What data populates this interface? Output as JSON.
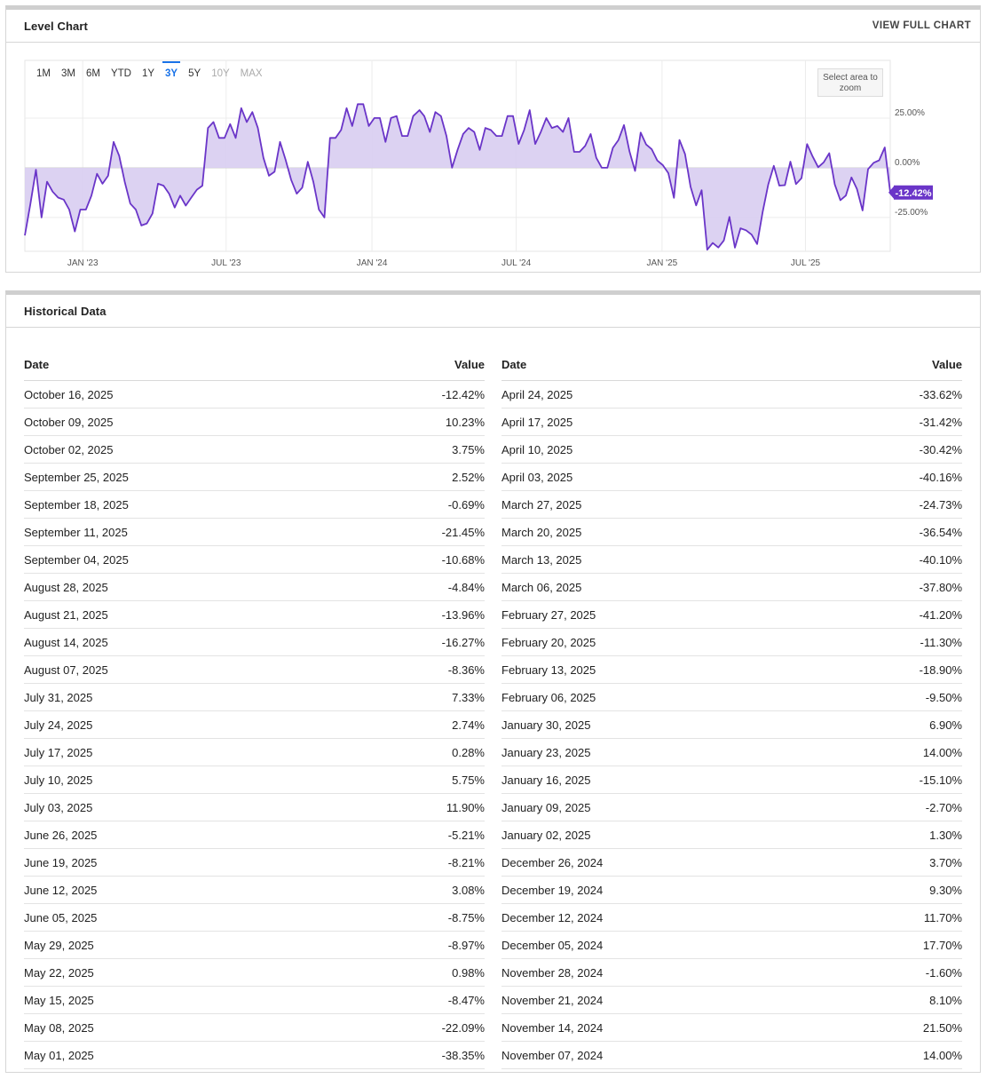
{
  "level_chart": {
    "title": "Level Chart",
    "view_full": "VIEW FULL CHART",
    "ranges": [
      {
        "label": "1M",
        "state": "normal"
      },
      {
        "label": "3M",
        "state": "normal"
      },
      {
        "label": "6M",
        "state": "normal"
      },
      {
        "label": "YTD",
        "state": "normal"
      },
      {
        "label": "1Y",
        "state": "normal"
      },
      {
        "label": "3Y",
        "state": "active"
      },
      {
        "label": "5Y",
        "state": "normal"
      },
      {
        "label": "10Y",
        "state": "disabled"
      },
      {
        "label": "MAX",
        "state": "disabled"
      }
    ],
    "zoom_hint": "Select area to zoom",
    "current_label": "-12.42%",
    "colors": {
      "line": "#6a35c8",
      "fill": "#d8cdf1",
      "current_bg": "#6a35c8",
      "active": "#1a73e8"
    }
  },
  "chart_data": {
    "type": "area",
    "x_ticks": [
      {
        "label": "JAN '23",
        "date": "2023-01-01"
      },
      {
        "label": "JUL '23",
        "date": "2023-07-01"
      },
      {
        "label": "JAN '24",
        "date": "2024-01-01"
      },
      {
        "label": "JUL '24",
        "date": "2024-07-01"
      },
      {
        "label": "JAN '25",
        "date": "2025-01-01"
      },
      {
        "label": "JUL '25",
        "date": "2025-07-01"
      }
    ],
    "y_ticks": [
      {
        "label": "25.00%",
        "value": 25
      },
      {
        "label": "0.00%",
        "value": 0
      },
      {
        "label": "-25.00%",
        "value": -25
      }
    ],
    "xlim": [
      "2022-10-20",
      "2025-10-16"
    ],
    "ylim": [
      -42,
      54
    ],
    "grid": true,
    "series": [
      {
        "points": [
          [
            "2022-10-20",
            -34
          ],
          [
            "2022-10-27",
            -18
          ],
          [
            "2022-11-03",
            -1
          ],
          [
            "2022-11-10",
            -25
          ],
          [
            "2022-11-17",
            -7
          ],
          [
            "2022-11-24",
            -12
          ],
          [
            "2022-12-01",
            -15
          ],
          [
            "2022-12-08",
            -16
          ],
          [
            "2022-12-15",
            -21
          ],
          [
            "2022-12-22",
            -32
          ],
          [
            "2022-12-29",
            -21
          ],
          [
            "2023-01-05",
            -21
          ],
          [
            "2023-01-12",
            -14
          ],
          [
            "2023-01-19",
            -3
          ],
          [
            "2023-01-26",
            -8
          ],
          [
            "2023-02-02",
            -4
          ],
          [
            "2023-02-09",
            13
          ],
          [
            "2023-02-16",
            6
          ],
          [
            "2023-02-23",
            -7
          ],
          [
            "2023-03-02",
            -18
          ],
          [
            "2023-03-09",
            -21
          ],
          [
            "2023-03-16",
            -29
          ],
          [
            "2023-03-23",
            -28
          ],
          [
            "2023-03-30",
            -23
          ],
          [
            "2023-04-06",
            -8
          ],
          [
            "2023-04-13",
            -9
          ],
          [
            "2023-04-20",
            -13
          ],
          [
            "2023-04-27",
            -20
          ],
          [
            "2023-05-04",
            -14
          ],
          [
            "2023-05-11",
            -19
          ],
          [
            "2023-05-18",
            -15
          ],
          [
            "2023-05-25",
            -11
          ],
          [
            "2023-06-01",
            -9
          ],
          [
            "2023-06-08",
            20
          ],
          [
            "2023-06-15",
            23
          ],
          [
            "2023-06-22",
            15
          ],
          [
            "2023-06-29",
            15
          ],
          [
            "2023-07-06",
            22
          ],
          [
            "2023-07-13",
            15
          ],
          [
            "2023-07-20",
            30
          ],
          [
            "2023-07-27",
            23
          ],
          [
            "2023-08-03",
            28
          ],
          [
            "2023-08-10",
            20
          ],
          [
            "2023-08-17",
            5
          ],
          [
            "2023-08-24",
            -4
          ],
          [
            "2023-08-31",
            -2
          ],
          [
            "2023-09-07",
            13
          ],
          [
            "2023-09-14",
            4
          ],
          [
            "2023-09-21",
            -6
          ],
          [
            "2023-09-28",
            -13
          ],
          [
            "2023-10-05",
            -10
          ],
          [
            "2023-10-12",
            3
          ],
          [
            "2023-10-19",
            -7
          ],
          [
            "2023-10-26",
            -21
          ],
          [
            "2023-11-02",
            -25
          ],
          [
            "2023-11-09",
            15
          ],
          [
            "2023-11-16",
            15
          ],
          [
            "2023-11-23",
            19
          ],
          [
            "2023-11-30",
            30
          ],
          [
            "2023-12-07",
            21
          ],
          [
            "2023-12-14",
            32
          ],
          [
            "2023-12-21",
            32
          ],
          [
            "2023-12-28",
            21
          ],
          [
            "2024-01-04",
            25
          ],
          [
            "2024-01-11",
            25
          ],
          [
            "2024-01-18",
            13
          ],
          [
            "2024-01-25",
            25
          ],
          [
            "2024-02-01",
            26
          ],
          [
            "2024-02-08",
            16
          ],
          [
            "2024-02-15",
            16
          ],
          [
            "2024-02-22",
            26
          ],
          [
            "2024-03-01",
            29
          ],
          [
            "2024-03-07",
            26
          ],
          [
            "2024-03-14",
            18
          ],
          [
            "2024-03-21",
            28
          ],
          [
            "2024-03-28",
            26
          ],
          [
            "2024-04-04",
            16
          ],
          [
            "2024-04-11",
            0
          ],
          [
            "2024-04-18",
            9
          ],
          [
            "2024-04-25",
            17
          ],
          [
            "2024-05-02",
            20
          ],
          [
            "2024-05-09",
            18
          ],
          [
            "2024-05-16",
            9
          ],
          [
            "2024-05-23",
            20
          ],
          [
            "2024-05-30",
            19
          ],
          [
            "2024-06-06",
            16
          ],
          [
            "2024-06-13",
            16
          ],
          [
            "2024-06-20",
            26
          ],
          [
            "2024-06-27",
            26
          ],
          [
            "2024-07-04",
            12
          ],
          [
            "2024-07-11",
            19
          ],
          [
            "2024-07-18",
            29
          ],
          [
            "2024-07-25",
            12
          ],
          [
            "2024-08-01",
            18
          ],
          [
            "2024-08-08",
            25
          ],
          [
            "2024-08-15",
            20
          ],
          [
            "2024-08-22",
            21
          ],
          [
            "2024-08-29",
            18
          ],
          [
            "2024-09-05",
            25
          ],
          [
            "2024-09-12",
            8
          ],
          [
            "2024-09-19",
            8
          ],
          [
            "2024-09-26",
            11
          ],
          [
            "2024-10-03",
            17
          ],
          [
            "2024-10-10",
            5
          ],
          [
            "2024-10-17",
            0
          ],
          [
            "2024-10-24",
            0
          ],
          [
            "2024-10-31",
            10
          ],
          [
            "2024-11-07",
            14
          ],
          [
            "2024-11-14",
            21.5
          ],
          [
            "2024-11-21",
            8.1
          ],
          [
            "2024-11-28",
            -1.6
          ],
          [
            "2024-12-05",
            17.7
          ],
          [
            "2024-12-12",
            11.7
          ],
          [
            "2024-12-19",
            9.3
          ],
          [
            "2024-12-26",
            3.7
          ],
          [
            "2025-01-02",
            1.3
          ],
          [
            "2025-01-09",
            -2.7
          ],
          [
            "2025-01-16",
            -15.1
          ],
          [
            "2025-01-23",
            14
          ],
          [
            "2025-01-30",
            6.9
          ],
          [
            "2025-02-06",
            -9.5
          ],
          [
            "2025-02-13",
            -18.9
          ],
          [
            "2025-02-20",
            -11.3
          ],
          [
            "2025-02-27",
            -41.2
          ],
          [
            "2025-03-06",
            -37.8
          ],
          [
            "2025-03-13",
            -40.1
          ],
          [
            "2025-03-20",
            -36.54
          ],
          [
            "2025-03-27",
            -24.73
          ],
          [
            "2025-04-03",
            -40.16
          ],
          [
            "2025-04-10",
            -30.42
          ],
          [
            "2025-04-17",
            -31.42
          ],
          [
            "2025-04-24",
            -33.62
          ],
          [
            "2025-05-01",
            -38.35
          ],
          [
            "2025-05-08",
            -22.09
          ],
          [
            "2025-05-15",
            -8.47
          ],
          [
            "2025-05-22",
            0.98
          ],
          [
            "2025-05-29",
            -8.97
          ],
          [
            "2025-06-05",
            -8.75
          ],
          [
            "2025-06-12",
            3.08
          ],
          [
            "2025-06-19",
            -8.21
          ],
          [
            "2025-06-26",
            -5.21
          ],
          [
            "2025-07-03",
            11.9
          ],
          [
            "2025-07-10",
            5.75
          ],
          [
            "2025-07-17",
            0.28
          ],
          [
            "2025-07-24",
            2.74
          ],
          [
            "2025-07-31",
            7.33
          ],
          [
            "2025-08-07",
            -8.36
          ],
          [
            "2025-08-14",
            -16.27
          ],
          [
            "2025-08-21",
            -13.96
          ],
          [
            "2025-08-28",
            -4.84
          ],
          [
            "2025-09-04",
            -10.68
          ],
          [
            "2025-09-11",
            -21.45
          ],
          [
            "2025-09-18",
            -0.69
          ],
          [
            "2025-09-25",
            2.52
          ],
          [
            "2025-10-02",
            3.75
          ],
          [
            "2025-10-09",
            10.23
          ],
          [
            "2025-10-16",
            -12.42
          ]
        ]
      }
    ]
  },
  "historical": {
    "title": "Historical Data",
    "header": {
      "date": "Date",
      "value": "Value"
    },
    "left": [
      {
        "date": "October 16, 2025",
        "value": "-12.42%"
      },
      {
        "date": "October 09, 2025",
        "value": "10.23%"
      },
      {
        "date": "October 02, 2025",
        "value": "3.75%"
      },
      {
        "date": "September 25, 2025",
        "value": "2.52%"
      },
      {
        "date": "September 18, 2025",
        "value": "-0.69%"
      },
      {
        "date": "September 11, 2025",
        "value": "-21.45%"
      },
      {
        "date": "September 04, 2025",
        "value": "-10.68%"
      },
      {
        "date": "August 28, 2025",
        "value": "-4.84%"
      },
      {
        "date": "August 21, 2025",
        "value": "-13.96%"
      },
      {
        "date": "August 14, 2025",
        "value": "-16.27%"
      },
      {
        "date": "August 07, 2025",
        "value": "-8.36%"
      },
      {
        "date": "July 31, 2025",
        "value": "7.33%"
      },
      {
        "date": "July 24, 2025",
        "value": "2.74%"
      },
      {
        "date": "July 17, 2025",
        "value": "0.28%"
      },
      {
        "date": "July 10, 2025",
        "value": "5.75%"
      },
      {
        "date": "July 03, 2025",
        "value": "11.90%"
      },
      {
        "date": "June 26, 2025",
        "value": "-5.21%"
      },
      {
        "date": "June 19, 2025",
        "value": "-8.21%"
      },
      {
        "date": "June 12, 2025",
        "value": "3.08%"
      },
      {
        "date": "June 05, 2025",
        "value": "-8.75%"
      },
      {
        "date": "May 29, 2025",
        "value": "-8.97%"
      },
      {
        "date": "May 22, 2025",
        "value": "0.98%"
      },
      {
        "date": "May 15, 2025",
        "value": "-8.47%"
      },
      {
        "date": "May 08, 2025",
        "value": "-22.09%"
      },
      {
        "date": "May 01, 2025",
        "value": "-38.35%"
      }
    ],
    "right": [
      {
        "date": "April 24, 2025",
        "value": "-33.62%"
      },
      {
        "date": "April 17, 2025",
        "value": "-31.42%"
      },
      {
        "date": "April 10, 2025",
        "value": "-30.42%"
      },
      {
        "date": "April 03, 2025",
        "value": "-40.16%"
      },
      {
        "date": "March 27, 2025",
        "value": "-24.73%"
      },
      {
        "date": "March 20, 2025",
        "value": "-36.54%"
      },
      {
        "date": "March 13, 2025",
        "value": "-40.10%"
      },
      {
        "date": "March 06, 2025",
        "value": "-37.80%"
      },
      {
        "date": "February 27, 2025",
        "value": "-41.20%"
      },
      {
        "date": "February 20, 2025",
        "value": "-11.30%"
      },
      {
        "date": "February 13, 2025",
        "value": "-18.90%"
      },
      {
        "date": "February 06, 2025",
        "value": "-9.50%"
      },
      {
        "date": "January 30, 2025",
        "value": "6.90%"
      },
      {
        "date": "January 23, 2025",
        "value": "14.00%"
      },
      {
        "date": "January 16, 2025",
        "value": "-15.10%"
      },
      {
        "date": "January 09, 2025",
        "value": "-2.70%"
      },
      {
        "date": "January 02, 2025",
        "value": "1.30%"
      },
      {
        "date": "December 26, 2024",
        "value": "3.70%"
      },
      {
        "date": "December 19, 2024",
        "value": "9.30%"
      },
      {
        "date": "December 12, 2024",
        "value": "11.70%"
      },
      {
        "date": "December 05, 2024",
        "value": "17.70%"
      },
      {
        "date": "November 28, 2024",
        "value": "-1.60%"
      },
      {
        "date": "November 21, 2024",
        "value": "8.10%"
      },
      {
        "date": "November 14, 2024",
        "value": "21.50%"
      },
      {
        "date": "November 07, 2024",
        "value": "14.00%"
      }
    ]
  }
}
